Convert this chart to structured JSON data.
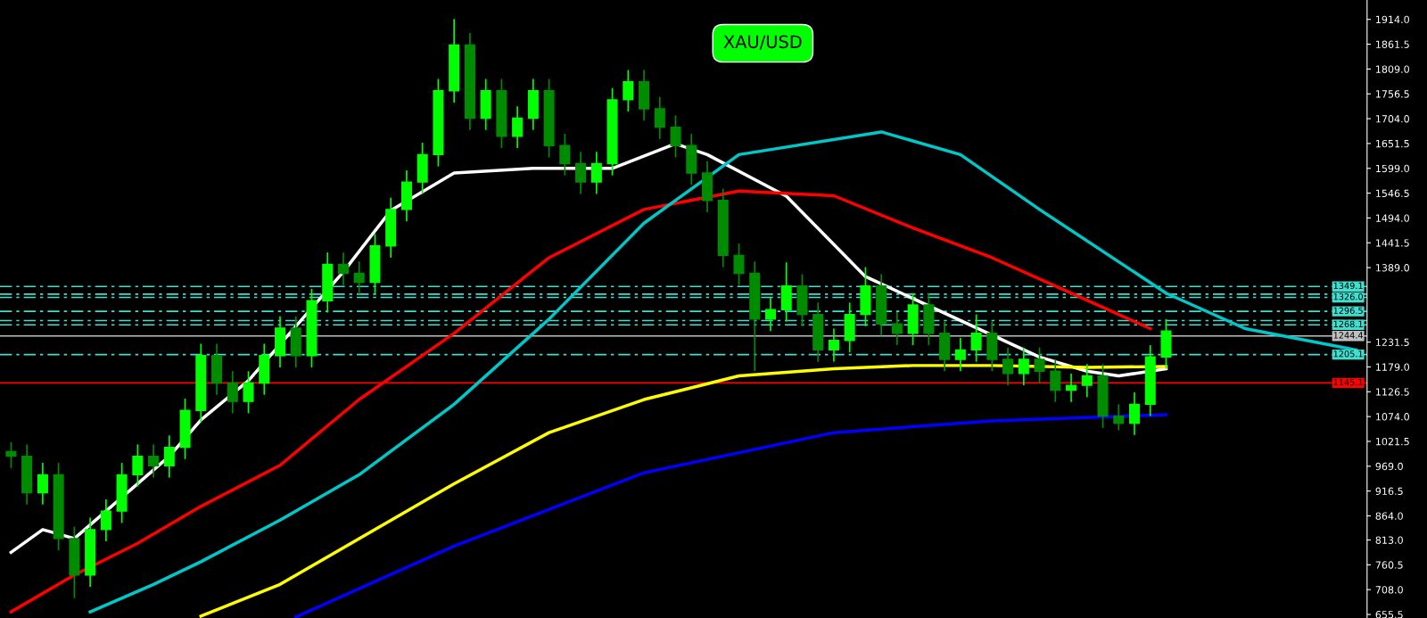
{
  "chart_data": {
    "type": "candlestick",
    "title": "XAU/USD",
    "tick_labels": "y",
    "colors": [
      "#008c00",
      "#008c00",
      "#00ff00",
      "#008c00",
      "#008c00",
      "#00ff00",
      "#00ff00",
      "#00ff00",
      "#00ff00",
      "#008c00",
      "#00ff00",
      "#00ff00",
      "#00ff00",
      "#008c00",
      "#008c00",
      "#00ff00",
      "#00ff00",
      "#00ff00",
      "#008c00",
      "#00ff00",
      "#00ff00",
      "#008c00",
      "#008c00",
      "#00ff00",
      "#00ff00",
      "#00ff00",
      "#00ff00",
      "#00ff00",
      "#00ff00",
      "#008c00",
      "#00ff00",
      "#008c00",
      "#00ff00",
      "#00ff00",
      "#008c00",
      "#008c00",
      "#008c00",
      "#00ff00",
      "#00ff00",
      "#00ff00",
      "#008c00",
      "#008c00",
      "#008c00",
      "#008c00",
      "#008c00",
      "#008c00",
      "#008c00",
      "#008c00",
      "#00ff00",
      "#00ff00",
      "#008c00",
      "#008c00",
      "#00ff00",
      "#00ff00",
      "#00ff00",
      "#008c00",
      "#008c00",
      "#00ff00",
      "#008c00",
      "#008c00",
      "#00ff00",
      "#00ff00",
      "#008c00",
      "#008c00",
      "#00ff00",
      "#008c00",
      "#008c00",
      "#00ff00",
      "#00ff00",
      "#008c00",
      "#008c00",
      "#00ff00",
      "#00ff00",
      "#00ff00",
      null,
      null,
      null,
      null,
      null,
      null,
      null,
      null,
      null,
      null,
      null,
      null
    ],
    "categories": [
      null,
      null,
      null,
      null,
      null,
      null,
      null,
      null,
      null,
      null,
      null,
      null,
      null,
      null,
      null,
      null,
      null,
      null,
      null,
      null,
      null,
      null,
      null,
      null,
      null,
      null,
      null,
      null,
      null,
      null,
      null,
      null,
      null,
      null,
      null,
      null,
      null,
      null,
      null,
      null,
      null,
      null,
      null,
      null,
      null,
      null,
      null,
      null,
      null,
      null,
      null,
      null,
      null,
      null,
      null,
      null,
      null,
      null,
      null,
      null,
      null,
      null,
      null,
      null,
      null,
      null,
      null,
      null,
      null,
      null,
      null,
      null,
      null,
      null,
      null,
      null,
      null,
      null,
      null,
      null,
      null,
      null,
      null,
      null,
      null,
      null
    ],
    "ohlc": [
      [
        1000,
        1020,
        965,
        990
      ],
      [
        990,
        1015,
        888,
        913
      ],
      [
        913,
        976,
        888,
        951
      ],
      [
        951,
        976,
        791,
        816
      ],
      [
        816,
        841,
        690,
        739
      ],
      [
        739,
        860,
        714,
        835
      ],
      [
        835,
        899,
        810,
        874
      ],
      [
        874,
        976,
        849,
        951
      ],
      [
        951,
        1015,
        926,
        990
      ],
      [
        990,
        1015,
        945,
        970
      ],
      [
        970,
        1034,
        945,
        1009
      ],
      [
        1009,
        1112,
        984,
        1087
      ],
      [
        1087,
        1228,
        1062,
        1203
      ],
      [
        1203,
        1228,
        1120,
        1145
      ],
      [
        1145,
        1170,
        1081,
        1106
      ],
      [
        1106,
        1170,
        1081,
        1145
      ],
      [
        1145,
        1228,
        1120,
        1203
      ],
      [
        1203,
        1286,
        1178,
        1261
      ],
      [
        1261,
        1286,
        1178,
        1203
      ],
      [
        1203,
        1344,
        1178,
        1319
      ],
      [
        1319,
        1421,
        1294,
        1396
      ],
      [
        1396,
        1421,
        1352,
        1377
      ],
      [
        1377,
        1402,
        1333,
        1358
      ],
      [
        1358,
        1460,
        1333,
        1435
      ],
      [
        1435,
        1537,
        1410,
        1512
      ],
      [
        1512,
        1595,
        1487,
        1570
      ],
      [
        1570,
        1653,
        1545,
        1628
      ],
      [
        1628,
        1788,
        1603,
        1763
      ],
      [
        1763,
        1915,
        1738,
        1860
      ],
      [
        1860,
        1885,
        1680,
        1705
      ],
      [
        1705,
        1788,
        1680,
        1763
      ],
      [
        1763,
        1788,
        1642,
        1667
      ],
      [
        1667,
        1730,
        1642,
        1705
      ],
      [
        1705,
        1788,
        1680,
        1763
      ],
      [
        1763,
        1788,
        1622,
        1647
      ],
      [
        1647,
        1672,
        1584,
        1609
      ],
      [
        1609,
        1634,
        1545,
        1570
      ],
      [
        1570,
        1634,
        1545,
        1609
      ],
      [
        1609,
        1769,
        1584,
        1744
      ],
      [
        1744,
        1807,
        1719,
        1782
      ],
      [
        1782,
        1807,
        1700,
        1725
      ],
      [
        1725,
        1750,
        1661,
        1686
      ],
      [
        1686,
        1711,
        1622,
        1647
      ],
      [
        1647,
        1672,
        1564,
        1589
      ],
      [
        1589,
        1614,
        1506,
        1531
      ],
      [
        1531,
        1556,
        1390,
        1415
      ],
      [
        1415,
        1440,
        1352,
        1377
      ],
      [
        1377,
        1402,
        1170,
        1280
      ],
      [
        1280,
        1325,
        1255,
        1300
      ],
      [
        1300,
        1400,
        1275,
        1350
      ],
      [
        1350,
        1375,
        1265,
        1290
      ],
      [
        1290,
        1315,
        1190,
        1215
      ],
      [
        1215,
        1260,
        1190,
        1235
      ],
      [
        1235,
        1315,
        1210,
        1290
      ],
      [
        1290,
        1390,
        1265,
        1350
      ],
      [
        1350,
        1375,
        1245,
        1270
      ],
      [
        1270,
        1295,
        1225,
        1250
      ],
      [
        1250,
        1335,
        1225,
        1310
      ],
      [
        1310,
        1335,
        1225,
        1250
      ],
      [
        1250,
        1275,
        1170,
        1195
      ],
      [
        1195,
        1240,
        1170,
        1215
      ],
      [
        1215,
        1290,
        1190,
        1250
      ],
      [
        1250,
        1275,
        1170,
        1195
      ],
      [
        1195,
        1220,
        1140,
        1165
      ],
      [
        1165,
        1220,
        1140,
        1195
      ],
      [
        1195,
        1220,
        1145,
        1170
      ],
      [
        1170,
        1195,
        1105,
        1130
      ],
      [
        1130,
        1165,
        1105,
        1140
      ],
      [
        1140,
        1185,
        1115,
        1160
      ],
      [
        1160,
        1185,
        1050,
        1075
      ],
      [
        1075,
        1100,
        1045,
        1060
      ],
      [
        1060,
        1125,
        1035,
        1100
      ],
      [
        1100,
        1225,
        1075,
        1200
      ],
      [
        1200,
        1280,
        1175,
        1255
      ],
      null,
      null,
      null,
      null,
      null,
      null,
      null,
      null,
      null,
      null,
      null,
      null
    ],
    "series": [
      {
        "type": "line",
        "color": "#ffffff",
        "values": [
          787,
          null,
          835,
          null,
          816,
          null,
          874,
          null,
          932,
          null,
          990,
          null,
          1067,
          null,
          null,
          1150,
          null,
          null,
          null,
          null,
          null,
          1380,
          null,
          null,
          1510,
          null,
          null,
          null,
          1589,
          null,
          null,
          null,
          null,
          1599,
          null,
          null,
          null,
          null,
          1599,
          null,
          null,
          null,
          1651,
          null,
          1628,
          null,
          null,
          null,
          null,
          1540,
          null,
          null,
          null,
          null,
          1370,
          null,
          null,
          null,
          null,
          null,
          null,
          null,
          null,
          null,
          null,
          1200,
          null,
          null,
          1170,
          null,
          1160,
          null,
          null,
          1175,
          null,
          null,
          null,
          null,
          null,
          null,
          null,
          null,
          null,
          null,
          null,
          null
        ]
      },
      {
        "type": "line",
        "color": "#ff0000",
        "values": [
          661,
          null,
          null,
          null,
          739,
          null,
          null,
          null,
          806,
          null,
          null,
          null,
          884,
          null,
          null,
          null,
          null,
          971,
          null,
          null,
          null,
          null,
          1110,
          null,
          null,
          null,
          null,
          null,
          1250,
          null,
          null,
          null,
          null,
          null,
          1410,
          null,
          null,
          null,
          null,
          null,
          1512,
          null,
          null,
          null,
          null,
          null,
          1551,
          null,
          null,
          null,
          null,
          null,
          1541,
          null,
          null,
          null,
          null,
          1473,
          null,
          null,
          null,
          null,
          1410,
          null,
          null,
          null,
          null,
          null,
          1320,
          null,
          null,
          null,
          1260,
          null,
          null,
          null,
          null,
          null,
          null,
          null,
          null,
          null,
          null,
          null,
          null,
          null
        ]
      },
      {
        "type": "line",
        "color": "#00c8c8",
        "values": [
          null,
          null,
          null,
          null,
          null,
          661,
          null,
          null,
          null,
          719,
          null,
          null,
          767,
          null,
          null,
          null,
          null,
          855,
          null,
          null,
          null,
          null,
          951,
          null,
          null,
          null,
          null,
          null,
          1100,
          null,
          null,
          null,
          null,
          null,
          1280,
          null,
          null,
          null,
          null,
          null,
          1483,
          null,
          null,
          null,
          null,
          null,
          1628,
          null,
          null,
          null,
          null,
          null,
          null,
          null,
          null,
          1676,
          null,
          null,
          null,
          null,
          1628,
          null,
          null,
          null,
          null,
          1512,
          null,
          null,
          null,
          null,
          null,
          null,
          null,
          1335,
          null,
          null,
          null,
          null,
          1260,
          null,
          null,
          null,
          null,
          null,
          null,
          1215
        ]
      },
      {
        "type": "line",
        "color": "#ffff00",
        "values": [
          null,
          null,
          null,
          null,
          null,
          null,
          null,
          null,
          null,
          null,
          null,
          null,
          652,
          null,
          null,
          null,
          null,
          719,
          null,
          null,
          null,
          null,
          816,
          null,
          null,
          null,
          null,
          null,
          932,
          null,
          null,
          null,
          null,
          null,
          1040,
          null,
          null,
          null,
          null,
          null,
          1110,
          null,
          null,
          null,
          null,
          null,
          1160,
          null,
          null,
          null,
          null,
          null,
          1175,
          null,
          null,
          null,
          null,
          1182,
          null,
          null,
          null,
          null,
          1182,
          null,
          null,
          null,
          null,
          null,
          1178,
          null,
          null,
          null,
          null,
          1180,
          null,
          null,
          null,
          null,
          null,
          null,
          null,
          null,
          null,
          null,
          null,
          null
        ]
      },
      {
        "type": "line",
        "color": "#0000ff",
        "values": [
          null,
          null,
          null,
          null,
          null,
          null,
          null,
          null,
          null,
          null,
          null,
          null,
          null,
          null,
          null,
          null,
          null,
          null,
          650,
          null,
          null,
          null,
          null,
          null,
          null,
          null,
          null,
          null,
          800,
          null,
          null,
          null,
          null,
          null,
          null,
          null,
          null,
          null,
          null,
          null,
          955,
          null,
          null,
          null,
          null,
          null,
          null,
          null,
          null,
          null,
          null,
          null,
          1040,
          null,
          null,
          null,
          null,
          null,
          null,
          null,
          null,
          null,
          1065,
          null,
          null,
          null,
          null,
          null,
          null,
          null,
          null,
          null,
          null,
          1078,
          null,
          null,
          null,
          null,
          null,
          null,
          null,
          null,
          null,
          null,
          null,
          null
        ]
      }
    ],
    "ylim": [
      648,
      1955
    ],
    "yticks": [
      {
        "value": 1914,
        "label": "1914.0"
      },
      {
        "value": 1861.5,
        "label": "1861.5"
      },
      {
        "value": 1809,
        "label": "1809.0"
      },
      {
        "value": 1756.5,
        "label": "1756.5"
      },
      {
        "value": 1704,
        "label": "1704.0"
      },
      {
        "value": 1651.5,
        "label": "1651.5"
      },
      {
        "value": 1599,
        "label": "1599.0"
      },
      {
        "value": 1546.5,
        "label": "1546.5"
      },
      {
        "value": 1494,
        "label": "1494.0"
      },
      {
        "value": 1441.5,
        "label": "1441.5"
      },
      {
        "value": 1389,
        "label": "1389.0"
      },
      {
        "value": 1231.5,
        "label": "1231.5"
      },
      {
        "value": 1179,
        "label": "1179.0"
      },
      {
        "value": 1126.5,
        "label": "1126.5"
      },
      {
        "value": 1074,
        "label": "1074.0"
      },
      {
        "value": 1021.5,
        "label": "1021.5"
      },
      {
        "value": 969,
        "label": "969.0"
      },
      {
        "value": 916.5,
        "label": "916.5"
      },
      {
        "value": 864,
        "label": "864.0"
      },
      {
        "value": 813,
        "label": "813.0"
      },
      {
        "value": 760.5,
        "label": "760.5"
      },
      {
        "value": 708,
        "label": "708.0"
      },
      {
        "value": 655.5,
        "label": "655.5"
      }
    ],
    "ref_lines": [
      {
        "axis": "y",
        "value": 1349.1,
        "label": "1349.1",
        "color": "#40e0d0",
        "line_style": "dashed"
      },
      {
        "axis": "y",
        "value": 1333,
        "label": null,
        "color": "#40e0d0",
        "line_style": "dashed"
      },
      {
        "axis": "y",
        "value": 1326.0,
        "label": "1326.0",
        "color": "#40e0d0",
        "line_style": "dashed"
      },
      {
        "axis": "y",
        "value": 1296.5,
        "label": "1296.5",
        "color": "#40e0d0",
        "line_style": "dashed"
      },
      {
        "axis": "y",
        "value": 1277,
        "label": null,
        "color": "#40e0d0",
        "line_style": "dashed"
      },
      {
        "axis": "y",
        "value": 1268.1,
        "label": "1268.1",
        "color": "#40e0d0",
        "line_style": "dashed"
      },
      {
        "axis": "y",
        "value": 1244.4,
        "label": "1244.4",
        "color": "#c0c0c0",
        "line_style": "solid"
      },
      {
        "axis": "y",
        "value": 1205.1,
        "label": "1205.1",
        "color": "#40e0d0",
        "line_style": "dashed"
      },
      {
        "axis": "y",
        "value": 1145.1,
        "label": "1145.1",
        "color": "#ff0000",
        "line_style": "solid"
      }
    ]
  }
}
